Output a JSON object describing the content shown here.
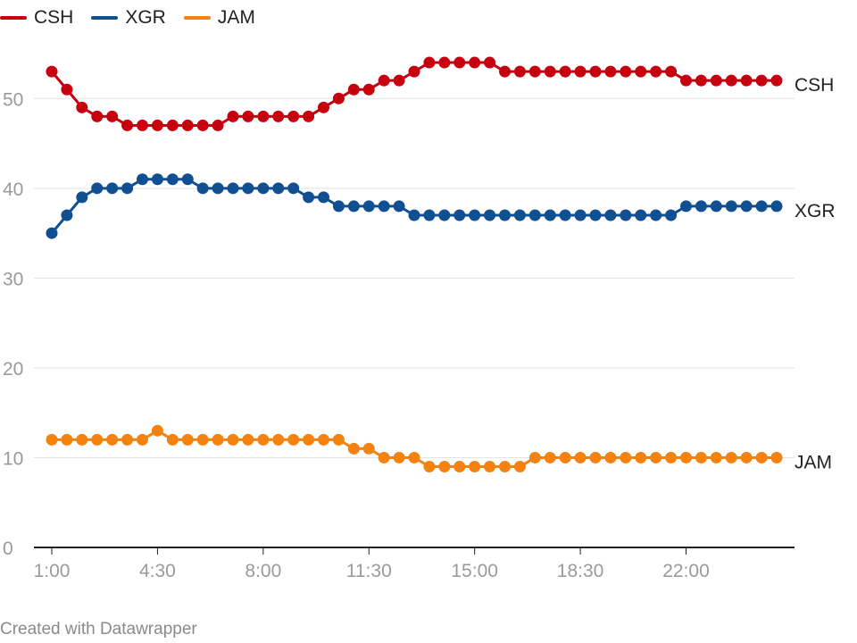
{
  "chart_data": {
    "type": "line",
    "title": "",
    "xlabel": "",
    "ylabel": "",
    "ylim": [
      0,
      55
    ],
    "yticks": [
      "0",
      "10",
      "20",
      "30",
      "40",
      "50"
    ],
    "grid": true,
    "legend_position": "top-left",
    "x": [
      "1:00",
      "1:30",
      "2:00",
      "2:30",
      "3:00",
      "3:30",
      "4:00",
      "4:30",
      "5:00",
      "5:30",
      "6:00",
      "6:30",
      "7:00",
      "7:30",
      "8:00",
      "8:30",
      "9:00",
      "9:30",
      "10:00",
      "10:30",
      "11:00",
      "11:30",
      "12:00",
      "12:30",
      "13:00",
      "13:30",
      "14:00",
      "14:30",
      "15:00",
      "15:30",
      "16:00",
      "16:30",
      "17:00",
      "17:30",
      "18:00",
      "18:30",
      "19:00",
      "19:30",
      "20:00",
      "20:30",
      "21:00",
      "21:30",
      "22:00",
      "22:30",
      "23:00",
      "23:30",
      "0:00",
      "0:30",
      "1:00"
    ],
    "xticks": [
      "1:00",
      "4:30",
      "8:00",
      "11:30",
      "15:00",
      "18:30",
      "22:00"
    ],
    "series": [
      {
        "name": "CSH",
        "color": "#c7000f",
        "values": [
          53,
          51,
          49,
          48,
          48,
          47,
          47,
          47,
          47,
          47,
          47,
          47,
          48,
          48,
          48,
          48,
          48,
          48,
          49,
          50,
          51,
          51,
          52,
          52,
          53,
          54,
          54,
          54,
          54,
          54,
          53,
          53,
          53,
          53,
          53,
          53,
          53,
          53,
          53,
          53,
          53,
          53,
          52,
          52,
          52,
          52,
          52,
          52,
          52
        ]
      },
      {
        "name": "XGR",
        "color": "#0f4f92",
        "values": [
          35,
          37,
          39,
          40,
          40,
          40,
          41,
          41,
          41,
          41,
          40,
          40,
          40,
          40,
          40,
          40,
          40,
          39,
          39,
          38,
          38,
          38,
          38,
          38,
          37,
          37,
          37,
          37,
          37,
          37,
          37,
          37,
          37,
          37,
          37,
          37,
          37,
          37,
          37,
          37,
          37,
          37,
          38,
          38,
          38,
          38,
          38,
          38,
          38
        ]
      },
      {
        "name": "JAM",
        "color": "#f48210",
        "values": [
          12,
          12,
          12,
          12,
          12,
          12,
          12,
          13,
          12,
          12,
          12,
          12,
          12,
          12,
          12,
          12,
          12,
          12,
          12,
          12,
          11,
          11,
          10,
          10,
          10,
          9,
          9,
          9,
          9,
          9,
          9,
          9,
          10,
          10,
          10,
          10,
          10,
          10,
          10,
          10,
          10,
          10,
          10,
          10,
          10,
          10,
          10,
          10,
          10
        ]
      }
    ]
  },
  "footer": {
    "credit": "Created with Datawrapper"
  }
}
